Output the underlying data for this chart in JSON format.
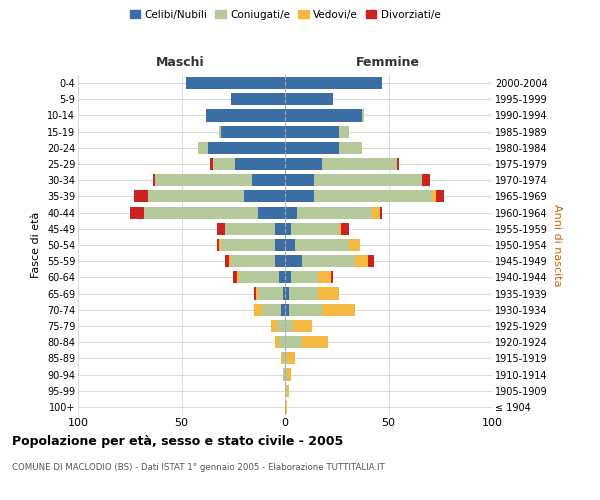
{
  "age_groups": [
    "100+",
    "95-99",
    "90-94",
    "85-89",
    "80-84",
    "75-79",
    "70-74",
    "65-69",
    "60-64",
    "55-59",
    "50-54",
    "45-49",
    "40-44",
    "35-39",
    "30-34",
    "25-29",
    "20-24",
    "15-19",
    "10-14",
    "5-9",
    "0-4"
  ],
  "birth_years": [
    "≤ 1904",
    "1905-1909",
    "1910-1914",
    "1915-1919",
    "1920-1924",
    "1925-1929",
    "1930-1934",
    "1935-1939",
    "1940-1944",
    "1945-1949",
    "1950-1954",
    "1955-1959",
    "1960-1964",
    "1965-1969",
    "1970-1974",
    "1975-1979",
    "1980-1984",
    "1985-1989",
    "1990-1994",
    "1995-1999",
    "2000-2004"
  ],
  "colors": {
    "celibi": "#3a6ea5",
    "coniugati": "#b5c99a",
    "vedovi": "#f5b942",
    "divorziati": "#cc2222"
  },
  "maschi": {
    "celibi": [
      0,
      0,
      0,
      0,
      0,
      0,
      2,
      1,
      3,
      5,
      5,
      5,
      13,
      20,
      16,
      24,
      37,
      31,
      38,
      26,
      48
    ],
    "coniugati": [
      0,
      0,
      1,
      1,
      3,
      4,
      9,
      12,
      19,
      21,
      26,
      24,
      55,
      46,
      47,
      11,
      5,
      1,
      0,
      0,
      0
    ],
    "vedovi": [
      0,
      0,
      0,
      1,
      2,
      3,
      4,
      1,
      1,
      1,
      1,
      0,
      0,
      0,
      0,
      0,
      0,
      0,
      0,
      0,
      0
    ],
    "divorziati": [
      0,
      0,
      0,
      0,
      0,
      0,
      0,
      1,
      2,
      2,
      1,
      4,
      7,
      7,
      1,
      1,
      0,
      0,
      0,
      0,
      0
    ]
  },
  "femmine": {
    "celibi": [
      0,
      0,
      0,
      0,
      0,
      0,
      2,
      2,
      3,
      8,
      5,
      3,
      6,
      14,
      14,
      18,
      26,
      26,
      37,
      23,
      47
    ],
    "coniugati": [
      0,
      1,
      1,
      1,
      8,
      4,
      16,
      14,
      13,
      26,
      26,
      23,
      36,
      57,
      52,
      36,
      11,
      5,
      1,
      0,
      0
    ],
    "vedovi": [
      1,
      1,
      2,
      4,
      13,
      9,
      16,
      10,
      6,
      6,
      5,
      1,
      4,
      2,
      0,
      0,
      0,
      0,
      0,
      0,
      0
    ],
    "divorziati": [
      0,
      0,
      0,
      0,
      0,
      0,
      0,
      0,
      1,
      3,
      0,
      4,
      1,
      4,
      4,
      1,
      0,
      0,
      0,
      0,
      0
    ]
  },
  "xlim": 100,
  "title": "Popolazione per età, sesso e stato civile - 2005",
  "subtitle": "COMUNE DI MACLODIO (BS) - Dati ISTAT 1° gennaio 2005 - Elaborazione TUTTITALIA.IT",
  "ylabel_left": "Fasce di età",
  "ylabel_right": "Anni di nascita",
  "xlabel_maschi": "Maschi",
  "xlabel_femmine": "Femmine",
  "bg_color": "#ffffff",
  "grid_color": "#cccccc",
  "legend_labels": [
    "Celibi/Nubili",
    "Coniugati/e",
    "Vedovi/e",
    "Divorziati/e"
  ]
}
